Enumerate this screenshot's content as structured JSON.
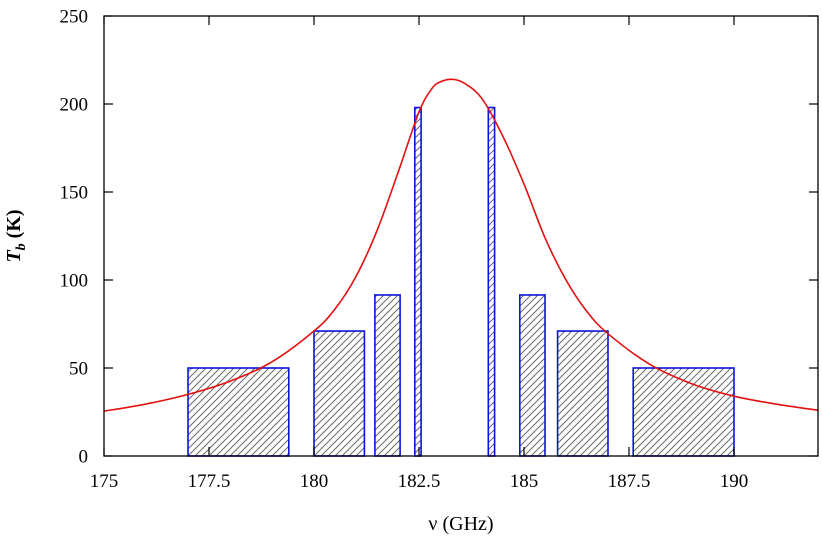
{
  "chart_data": {
    "type": "bar",
    "xlabel": "ν (GHz)",
    "ylabel": {
      "var": "T",
      "sub": "b",
      "unit": " (K)"
    },
    "xlim": [
      175,
      192
    ],
    "ylim": [
      0,
      250
    ],
    "x_ticks": [
      175,
      177.5,
      180,
      182.5,
      185,
      187.5,
      190
    ],
    "x_tick_labels": [
      "175",
      "177.5",
      "180",
      "182.5",
      "185",
      "187.5",
      "190"
    ],
    "y_ticks": [
      0,
      50,
      100,
      150,
      200,
      250
    ],
    "y_tick_labels": [
      "0",
      "50",
      "100",
      "150",
      "200",
      "250"
    ],
    "grid": false,
    "bars": [
      {
        "x0": 177.0,
        "x1": 179.4,
        "value": 50
      },
      {
        "x0": 180.0,
        "x1": 181.2,
        "value": 71
      },
      {
        "x0": 181.45,
        "x1": 182.05,
        "value": 91.5
      },
      {
        "x0": 182.4,
        "x1": 182.55,
        "value": 198
      },
      {
        "x0": 184.15,
        "x1": 184.3,
        "value": 198
      },
      {
        "x0": 184.9,
        "x1": 185.5,
        "value": 91.5
      },
      {
        "x0": 185.8,
        "x1": 187.0,
        "value": 71
      },
      {
        "x0": 187.6,
        "x1": 190.0,
        "value": 50
      }
    ],
    "curve": {
      "type": "line",
      "x": [
        175,
        176,
        177,
        178,
        179,
        180,
        180.5,
        181,
        181.5,
        182,
        182.5,
        182.8,
        183,
        183.3,
        183.6,
        184,
        184.5,
        185,
        185.5,
        186,
        186.5,
        187,
        188,
        189,
        190,
        191,
        192
      ],
      "y": [
        25.5,
        29.5,
        35,
        42.5,
        53.5,
        71,
        83.5,
        102,
        128,
        161,
        195.5,
        208.5,
        212.5,
        214,
        211.5,
        203,
        181.5,
        154.5,
        124,
        100,
        82,
        69.5,
        52,
        41,
        34,
        29.5,
        26
      ]
    },
    "colors": {
      "bar_stroke": "#0a14d8",
      "bar_hatch": "#6a6a6a",
      "curve": "#e31010",
      "axis": "#000000"
    }
  }
}
